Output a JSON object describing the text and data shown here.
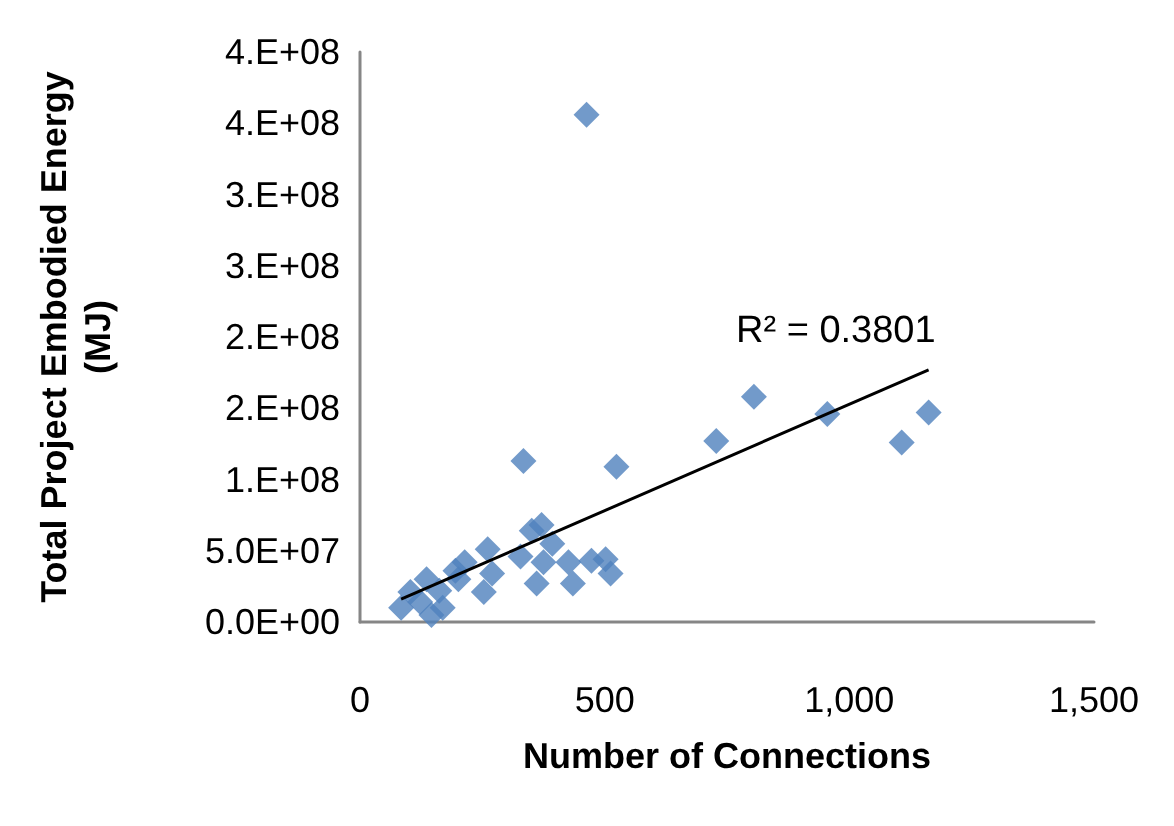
{
  "chart_data": {
    "type": "scatter",
    "xlabel": "Number of Connections",
    "ylabel": "Total Project Embodied Energy (MJ)",
    "xlim": [
      0,
      1500
    ],
    "xticks": [
      {
        "value": 0,
        "label": "0"
      },
      {
        "value": 500,
        "label": "500"
      },
      {
        "value": 1000,
        "label": "1,000"
      },
      {
        "value": 1500,
        "label": "1,500"
      }
    ],
    "ylim": [
      0,
      400000000
    ],
    "yticks": [
      {
        "value": 0,
        "label": "0.0E+00"
      },
      {
        "value": 50000000,
        "label": "5.0E+07"
      },
      {
        "value": 100000000,
        "label": "1.E+08"
      },
      {
        "value": 150000000,
        "label": "2.E+08"
      },
      {
        "value": 200000000,
        "label": "2.E+08"
      },
      {
        "value": 250000000,
        "label": "3.E+08"
      },
      {
        "value": 300000000,
        "label": "3.E+08"
      },
      {
        "value": 350000000,
        "label": "4.E+08"
      },
      {
        "value": 400000000,
        "label": "4.E+08"
      }
    ],
    "grid": false,
    "marker": "diamond",
    "series": [
      {
        "color": "#4f81bd",
        "x": [
          463,
          805,
          955,
          1162,
          1107,
          728,
          524,
          334,
          371,
          351,
          393,
          328,
          261,
          214,
          270,
          201,
          253,
          375,
          426,
          361,
          435,
          473,
          502,
          512,
          84,
          103,
          136,
          146,
          169,
          123,
          162,
          195
        ],
        "values": [
          356000000,
          158000000,
          146000000,
          147000000,
          126000000,
          127000000,
          109000000,
          113000000,
          68000000,
          64000000,
          55000000,
          46000000,
          51000000,
          42000000,
          34000000,
          30000000,
          21000000,
          42000000,
          42000000,
          27000000,
          27000000,
          43000000,
          44000000,
          34000000,
          10000000,
          21000000,
          30000000,
          5000000,
          10000000,
          14000000,
          22000000,
          36000000
        ]
      },
      {
        "type": "line",
        "color": "#000000",
        "marker": "none",
        "x": [
          84,
          1162
        ],
        "values": [
          16000000,
          177000000
        ]
      }
    ],
    "annotations": [
      "R² = 0.3801"
    ]
  }
}
